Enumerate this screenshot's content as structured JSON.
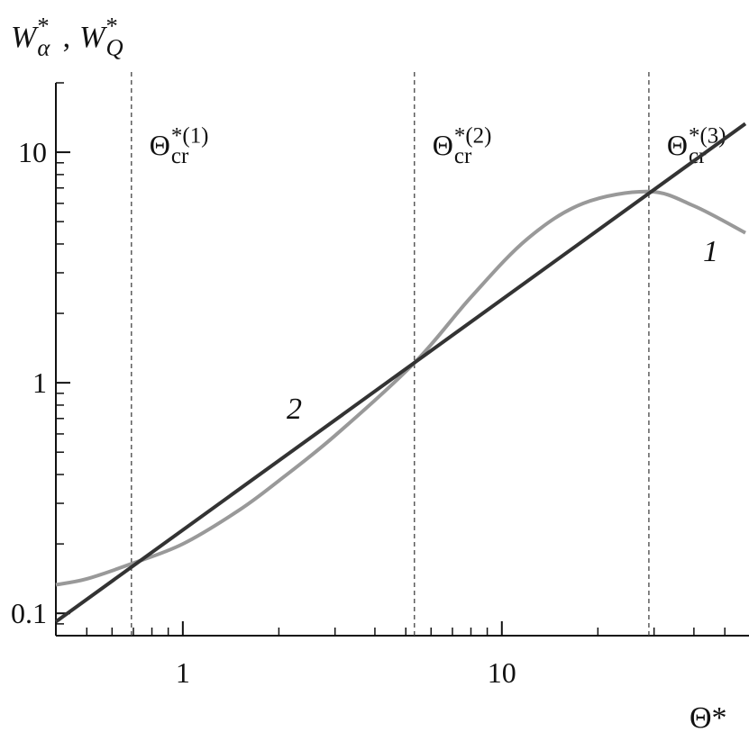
{
  "chart_data": {
    "type": "line",
    "xlabel": "Θ*",
    "ylabel": [
      {
        "base": "W",
        "sub": "α",
        "sup": "*"
      },
      {
        "base": "W",
        "sub": "Q",
        "sup": "*"
      }
    ],
    "ylabel_separator": ",",
    "log_x": true,
    "log_y": true,
    "xlim": [
      0.4,
      58
    ],
    "ylim": [
      0.08,
      20
    ],
    "xticks": [
      1,
      10
    ],
    "yticks": [
      0.1,
      1,
      10
    ],
    "xminorticks": [
      0.4,
      0.5,
      0.6,
      0.7,
      0.8,
      0.9,
      2,
      3,
      4,
      5,
      6,
      7,
      8,
      9,
      20,
      30,
      40,
      50
    ],
    "yminorticks": [
      0.08,
      0.09,
      0.2,
      0.3,
      0.4,
      0.5,
      0.6,
      0.7,
      0.8,
      0.9,
      2,
      3,
      4,
      5,
      6,
      7,
      8,
      9,
      20
    ],
    "series": [
      {
        "label": "1",
        "color": "#999999",
        "x": [
          0.4,
          0.5,
          0.69,
          1,
          1.5,
          2,
          3,
          5.32,
          8,
          12,
          18,
          28.9,
          40,
          58
        ],
        "values": [
          0.133,
          0.141,
          0.164,
          0.2,
          0.28,
          0.376,
          0.59,
          1.22,
          2.35,
          4.2,
          6.0,
          6.75,
          5.85,
          4.47
        ]
      },
      {
        "label": "2",
        "color": "#333333",
        "x": [
          0.4,
          58
        ],
        "values": [
          0.092,
          13.3
        ]
      }
    ],
    "vlines": [
      {
        "value": 0.69,
        "label": {
          "base": "Θ",
          "sub": "cr",
          "sup": "*(1)"
        }
      },
      {
        "value": 5.32,
        "label": {
          "base": "Θ",
          "sub": "cr",
          "sup": "*(2)"
        }
      },
      {
        "value": 28.9,
        "label": {
          "base": "Θ",
          "sub": "cr",
          "sup": "*(3)"
        }
      }
    ]
  }
}
